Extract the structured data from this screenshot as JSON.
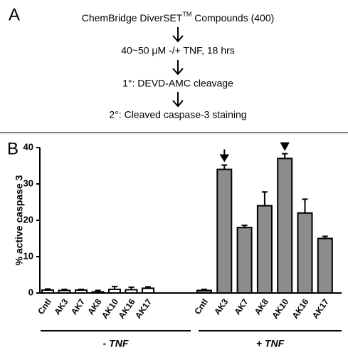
{
  "panel_a": {
    "label": "A",
    "steps": [
      {
        "text": "ChemBridge DiverSET",
        "superscript": "TM",
        "text_after": " Compounds (400)"
      },
      {
        "text": "40~50 μM -/+ TNF, 18 hrs"
      },
      {
        "text": "1°: DEVD-AMC cleavage"
      },
      {
        "text": "2°: Cleaved caspase-3 staining"
      }
    ]
  },
  "panel_b_label": "B",
  "chart_data": {
    "type": "bar",
    "ylabel": "% active caspase 3",
    "ylim": [
      0,
      40
    ],
    "yticks": [
      0,
      10,
      20,
      30,
      40
    ],
    "groups": [
      {
        "label": "- TNF",
        "color": "#ffffff",
        "categories": [
          "Cntl",
          "AK3",
          "AK7",
          "AK8",
          "AK10",
          "AK16",
          "AK17"
        ],
        "values": [
          0.8,
          0.7,
          0.8,
          0.3,
          1.0,
          0.9,
          1.3
        ],
        "errors": [
          0.3,
          0.3,
          0.2,
          0.4,
          0.8,
          0.7,
          0.4
        ]
      },
      {
        "label": "+ TNF",
        "color": "#8c8c8c",
        "categories": [
          "Cntl",
          "AK3",
          "AK7",
          "AK8",
          "AK10",
          "AK16",
          "AK17"
        ],
        "values": [
          0.7,
          34,
          18,
          24,
          37,
          22,
          15
        ],
        "errors": [
          0.3,
          1.2,
          0.6,
          3.8,
          1.3,
          3.8,
          0.6
        ]
      }
    ]
  }
}
